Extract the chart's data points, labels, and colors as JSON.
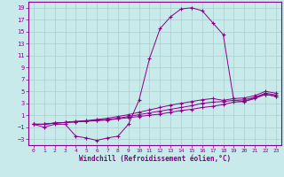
{
  "title": "",
  "xlabel": "Windchill (Refroidissement éolien,°C)",
  "ylabel": "",
  "background_color": "#c8eaea",
  "grid_color": "#aacccc",
  "line_color": "#880088",
  "xlim": [
    -0.5,
    23.5
  ],
  "ylim": [
    -4,
    20
  ],
  "xticks": [
    0,
    1,
    2,
    3,
    4,
    5,
    6,
    7,
    8,
    9,
    10,
    11,
    12,
    13,
    14,
    15,
    16,
    17,
    18,
    19,
    20,
    21,
    22,
    23
  ],
  "yticks": [
    -3,
    -1,
    1,
    3,
    5,
    7,
    9,
    11,
    13,
    15,
    17,
    19
  ],
  "series": [
    {
      "x": [
        0,
        1,
        2,
        3,
        4,
        5,
        6,
        7,
        8,
        9,
        10,
        11,
        12,
        13,
        14,
        15,
        16,
        17,
        18,
        19,
        20,
        21,
        22,
        23
      ],
      "y": [
        -0.5,
        -1.0,
        -0.5,
        -0.5,
        -2.5,
        -2.8,
        -3.2,
        -2.8,
        -2.5,
        -0.5,
        3.5,
        10.5,
        15.5,
        17.5,
        18.8,
        19.0,
        18.5,
        16.5,
        14.5,
        3.5,
        3.3,
        4.0,
        4.5,
        4.2
      ]
    },
    {
      "x": [
        0,
        1,
        2,
        3,
        4,
        5,
        6,
        7,
        8,
        9,
        10,
        11,
        12,
        13,
        14,
        15,
        16,
        17,
        18,
        19,
        20,
        21,
        22,
        23
      ],
      "y": [
        -0.5,
        -0.5,
        -0.3,
        -0.2,
        -0.1,
        0.0,
        0.1,
        0.2,
        0.4,
        0.6,
        0.8,
        1.0,
        1.2,
        1.5,
        1.8,
        2.0,
        2.3,
        2.5,
        2.8,
        3.2,
        3.3,
        3.8,
        4.5,
        4.2
      ]
    },
    {
      "x": [
        0,
        1,
        2,
        3,
        4,
        5,
        6,
        7,
        8,
        9,
        10,
        11,
        12,
        13,
        14,
        15,
        16,
        17,
        18,
        19,
        20,
        21,
        22,
        23
      ],
      "y": [
        -0.5,
        -0.5,
        -0.3,
        -0.2,
        -0.1,
        0.0,
        0.2,
        0.3,
        0.5,
        0.8,
        1.1,
        1.4,
        1.7,
        2.0,
        2.3,
        2.6,
        3.0,
        3.2,
        3.3,
        3.5,
        3.6,
        4.0,
        4.7,
        4.4
      ]
    },
    {
      "x": [
        0,
        1,
        2,
        3,
        4,
        5,
        6,
        7,
        8,
        9,
        10,
        11,
        12,
        13,
        14,
        15,
        16,
        17,
        18,
        19,
        20,
        21,
        22,
        23
      ],
      "y": [
        -0.5,
        -0.5,
        -0.3,
        -0.2,
        0.0,
        0.1,
        0.3,
        0.5,
        0.8,
        1.1,
        1.5,
        1.9,
        2.3,
        2.7,
        3.0,
        3.3,
        3.6,
        3.8,
        3.5,
        3.8,
        3.9,
        4.3,
        5.0,
        4.7
      ]
    }
  ]
}
